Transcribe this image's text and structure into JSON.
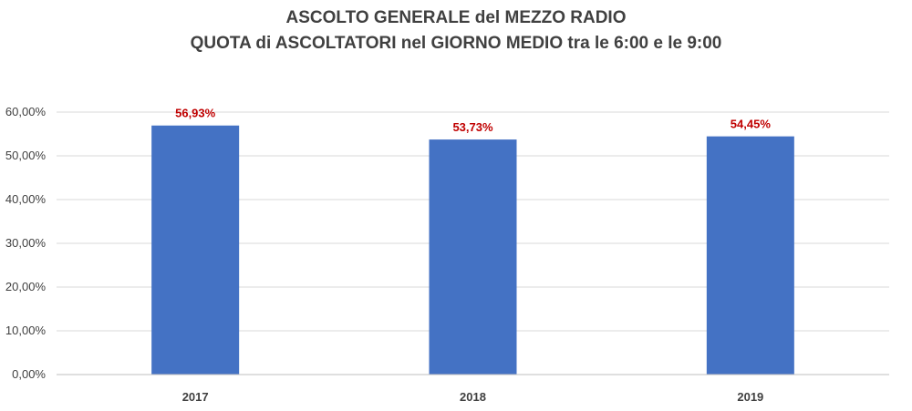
{
  "chart_data": {
    "type": "bar",
    "title": "ASCOLTO GENERALE del MEZZO RADIO",
    "subtitle": "QUOTA di ASCOLTATORI nel GIORNO MEDIO tra le 6:00 e le 9:00",
    "categories": [
      "2017",
      "2018",
      "2019"
    ],
    "values": [
      56.93,
      53.73,
      54.45
    ],
    "data_labels": [
      "56,93%",
      "53,73%",
      "54,45%"
    ],
    "y_ticks": [
      {
        "value": 0,
        "label": "0,00%"
      },
      {
        "value": 10,
        "label": "10,00%"
      },
      {
        "value": 20,
        "label": "20,00%"
      },
      {
        "value": 30,
        "label": "30,00%"
      },
      {
        "value": 40,
        "label": "40,00%"
      },
      {
        "value": 50,
        "label": "50,00%"
      },
      {
        "value": 60,
        "label": "60,00%"
      }
    ],
    "ylim": [
      0,
      60
    ],
    "xlabel": "",
    "ylabel": "",
    "grid": true,
    "legend": "none",
    "bar_color": "#4472c4",
    "label_color": "#c00000",
    "grid_color": "#d9d9d9"
  }
}
